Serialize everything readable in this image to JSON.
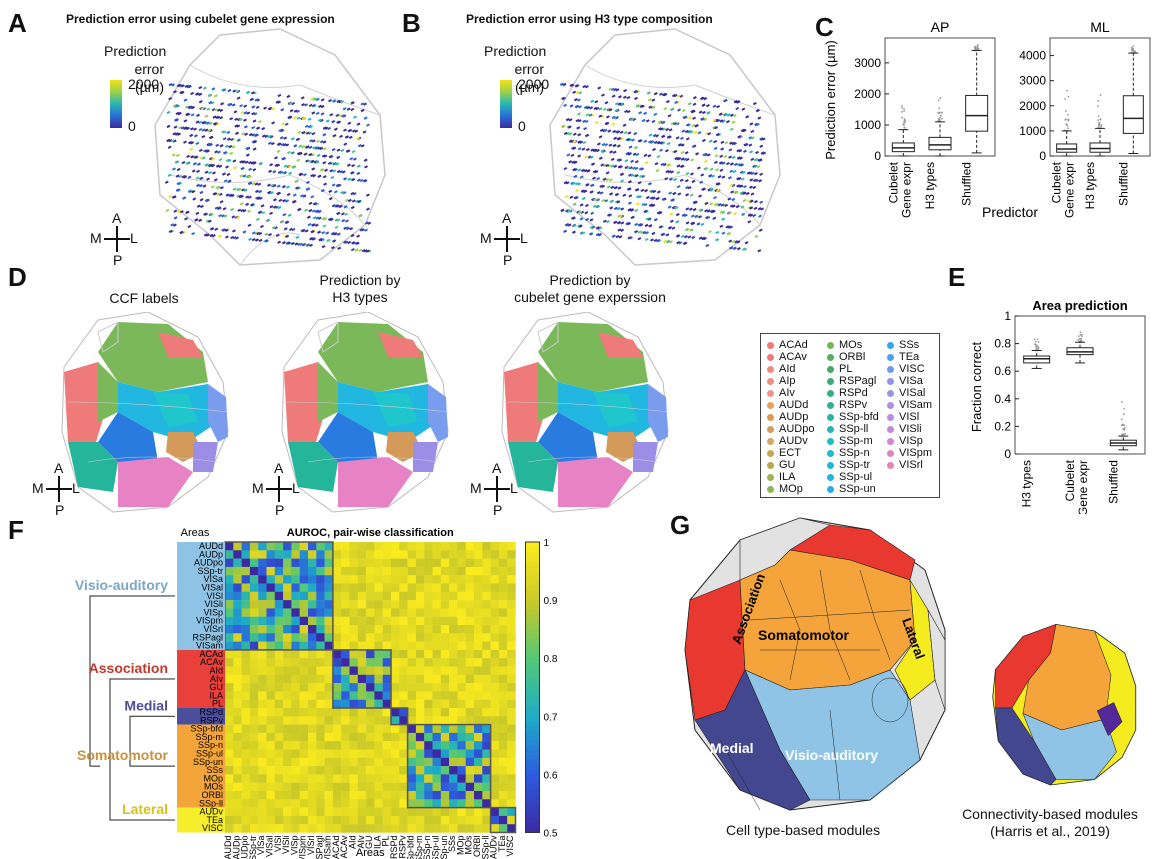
{
  "panels": {
    "A": {
      "letter": "A",
      "title": "Prediction error using cubelet gene expression",
      "cbar_label": [
        "Prediction",
        "error (µm)"
      ],
      "cbar_max": "2000",
      "cbar_min": "0"
    },
    "B": {
      "letter": "B",
      "title": "Prediction error using H3 type composition",
      "cbar_label": [
        "Prediction",
        "error (µm)"
      ],
      "cbar_max": "2000",
      "cbar_min": "0"
    },
    "C": {
      "letter": "C"
    },
    "D": {
      "letter": "D",
      "sub_titles": [
        [
          "CCF labels"
        ],
        [
          "Prediction by",
          "H3 types"
        ],
        [
          "Prediction by",
          "cubelet gene experssion"
        ]
      ]
    },
    "E": {
      "letter": "E"
    },
    "F": {
      "letter": "F",
      "title": "AUROC, pair-wise classification",
      "axis_label": "Areas",
      "cbar_ticks": [
        "1",
        "0.9",
        "0.8",
        "0.7",
        "0.6",
        "0.5"
      ]
    },
    "G": {
      "letter": "G",
      "left_caption": "Cell type-based modules",
      "right_caption": [
        "Connectivity-based modules",
        "(Harris et al., 2019)"
      ],
      "module_labels": [
        "Association",
        "Somatomotor",
        "Lateral",
        "Medial",
        "Visio-auditory"
      ]
    }
  },
  "compass": {
    "a": "A",
    "m": "M",
    "l": "L",
    "p": "P"
  },
  "chart_data": [
    {
      "type": "box",
      "panel": "C",
      "title": "AP",
      "ylabel": "Prediction error (µm)",
      "xlabel": "Predictor",
      "categories": [
        "Cubelet Gene expr",
        "H3 types",
        "Shuffled"
      ],
      "ylim": [
        0,
        3800
      ],
      "yticks": [
        0,
        1000,
        2000,
        3000
      ],
      "boxes": [
        {
          "q1": 140,
          "median": 260,
          "q3": 420,
          "low": 0,
          "high": 850
        },
        {
          "q1": 200,
          "median": 360,
          "q3": 600,
          "low": 0,
          "high": 1100
        },
        {
          "q1": 800,
          "median": 1300,
          "q3": 1950,
          "low": 100,
          "high": 3400
        }
      ]
    },
    {
      "type": "box",
      "panel": "C",
      "title": "ML",
      "ylabel": "",
      "xlabel": "Predictor",
      "categories": [
        "Cubelet Gene expr",
        "H3 types",
        "Shuffled"
      ],
      "ylim": [
        0,
        4700
      ],
      "yticks": [
        0,
        1000,
        2000,
        3000,
        4000
      ],
      "boxes": [
        {
          "q1": 150,
          "median": 280,
          "q3": 480,
          "low": 0,
          "high": 1000
        },
        {
          "q1": 150,
          "median": 300,
          "q3": 520,
          "low": 0,
          "high": 1100
        },
        {
          "q1": 900,
          "median": 1500,
          "q3": 2400,
          "low": 100,
          "high": 4100
        }
      ]
    },
    {
      "type": "box",
      "panel": "E",
      "title": "Area prediction",
      "ylabel": "Fraction correct",
      "categories": [
        "H3 types",
        "Cubelet Gene expr",
        "Shuffled"
      ],
      "ylim": [
        0,
        1
      ],
      "yticks": [
        "0",
        "0.2",
        "0.4",
        "0.6",
        "0.8",
        "1"
      ],
      "boxes": [
        {
          "q1": 0.66,
          "median": 0.69,
          "q3": 0.71,
          "low": 0.62,
          "high": 0.75
        },
        {
          "q1": 0.72,
          "median": 0.74,
          "q3": 0.77,
          "low": 0.66,
          "high": 0.81
        },
        {
          "q1": 0.06,
          "median": 0.08,
          "q3": 0.1,
          "low": 0.03,
          "high": 0.13
        }
      ]
    },
    {
      "type": "heatmap",
      "panel": "F",
      "title": "AUROC, pair-wise classification",
      "areas": [
        "AUDd",
        "AUDp",
        "AUDpo",
        "SSp-tr",
        "VISa",
        "VISal",
        "VISl",
        "VISli",
        "VISp",
        "VISpm",
        "VISrl",
        "RSPagl",
        "VISam",
        "ACAd",
        "ACAv",
        "AId",
        "AIv",
        "GU",
        "ILA",
        "PL",
        "RSPd",
        "RSPv",
        "SSp-bfd",
        "SSp-m",
        "SSp-n",
        "SSp-ul",
        "SSp-un",
        "SSs",
        "MOp",
        "MOs",
        "ORBl",
        "SSp-ll",
        "AUDv",
        "TEa",
        "VISC"
      ],
      "groups": [
        {
          "name": "Visio-auditory",
          "start": 0,
          "end": 12,
          "color": "#8ec3e6"
        },
        {
          "name": "Association",
          "start": 13,
          "end": 19,
          "color": "#e8413c"
        },
        {
          "name": "Medial",
          "start": 20,
          "end": 21,
          "color": "#4b4e9a"
        },
        {
          "name": "Somatomotor",
          "start": 22,
          "end": 31,
          "color": "#f4a53a"
        },
        {
          "name": "Lateral",
          "start": 32,
          "end": 34,
          "color": "#f6ee2a"
        }
      ]
    }
  ],
  "legend": {
    "items": [
      {
        "label": "ACAd",
        "color": "#ee7777"
      },
      {
        "label": "ACAv",
        "color": "#ee7777"
      },
      {
        "label": "AId",
        "color": "#f08878"
      },
      {
        "label": "AIp",
        "color": "#f08c80"
      },
      {
        "label": "AIv",
        "color": "#f09488"
      },
      {
        "label": "AUDd",
        "color": "#e8a060"
      },
      {
        "label": "AUDp",
        "color": "#e09850"
      },
      {
        "label": "AUDpo",
        "color": "#d89a58"
      },
      {
        "label": "AUDv",
        "color": "#d9a560"
      },
      {
        "label": "ECT",
        "color": "#c9a450"
      },
      {
        "label": "GU",
        "color": "#b7a848"
      },
      {
        "label": "ILA",
        "color": "#a0b050"
      },
      {
        "label": "MOp",
        "color": "#8cb854"
      },
      {
        "label": "MOs",
        "color": "#78b458"
      },
      {
        "label": "ORBl",
        "color": "#58ac60"
      },
      {
        "label": "PL",
        "color": "#4aa86a"
      },
      {
        "label": "RSPagl",
        "color": "#3eaa78"
      },
      {
        "label": "RSPd",
        "color": "#38ac86"
      },
      {
        "label": "RSPv",
        "color": "#30b094"
      },
      {
        "label": "SSp-bfd",
        "color": "#2ab4a4"
      },
      {
        "label": "SSp-ll",
        "color": "#24b8b4"
      },
      {
        "label": "SSp-m",
        "color": "#1ebcc4"
      },
      {
        "label": "SSp-n",
        "color": "#1cbcd0"
      },
      {
        "label": "SSp-tr",
        "color": "#1cb8dc"
      },
      {
        "label": "SSp-ul",
        "color": "#20b4e4"
      },
      {
        "label": "SSp-un",
        "color": "#28acea"
      },
      {
        "label": "SSs",
        "color": "#30a8ec"
      },
      {
        "label": "TEa",
        "color": "#4aa0ee"
      },
      {
        "label": "VISC",
        "color": "#6e9aee"
      },
      {
        "label": "VISa",
        "color": "#8c96ec"
      },
      {
        "label": "VISal",
        "color": "#9c92ea"
      },
      {
        "label": "VISam",
        "color": "#ac8ee6"
      },
      {
        "label": "VISl",
        "color": "#bc8ae0"
      },
      {
        "label": "VISli",
        "color": "#c888da"
      },
      {
        "label": "VISp",
        "color": "#d486d2"
      },
      {
        "label": "VISpm",
        "color": "#de84c6"
      },
      {
        "label": "VISrl",
        "color": "#e682b8"
      }
    ]
  }
}
